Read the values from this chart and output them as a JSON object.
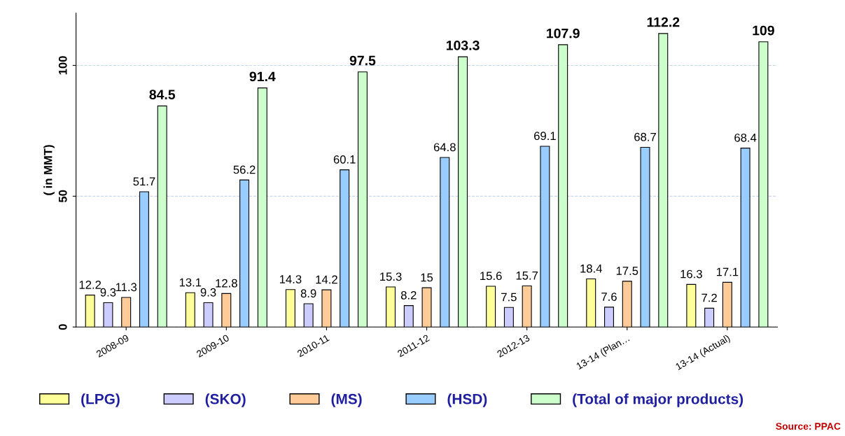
{
  "chart_data": {
    "type": "bar",
    "ylabel": "( in MMT)",
    "categories": [
      "2008-09",
      "2009-10",
      "2010-11",
      "2011-12",
      "2012-13",
      "13-14 (Plan…",
      "13-14 (Actual)"
    ],
    "series": [
      {
        "name": "(LPG)",
        "color": "#ffff99",
        "values": [
          12.2,
          13.1,
          14.3,
          15.3,
          15.6,
          18.4,
          16.3
        ]
      },
      {
        "name": "(SKO)",
        "color": "#ccccff",
        "values": [
          9.3,
          9.3,
          8.9,
          8.2,
          7.5,
          7.6,
          7.2
        ]
      },
      {
        "name": "(MS)",
        "color": "#ffcc99",
        "values": [
          11.3,
          12.8,
          14.2,
          15,
          15.7,
          17.5,
          17.1
        ]
      },
      {
        "name": "(HSD)",
        "color": "#99ccff",
        "values": [
          51.7,
          56.2,
          60.1,
          64.8,
          69.1,
          68.7,
          68.4
        ]
      },
      {
        "name": "(Total of major products)",
        "color": "#ccffcc",
        "values": [
          84.5,
          91.4,
          97.5,
          103.3,
          107.9,
          112.2,
          109
        ]
      }
    ],
    "ylim": [
      0,
      120
    ],
    "yticks": [
      0,
      50,
      100
    ],
    "grid": "y",
    "data_labels": true,
    "legend": "bottom",
    "annotations": [
      "Source: PPAC"
    ]
  }
}
